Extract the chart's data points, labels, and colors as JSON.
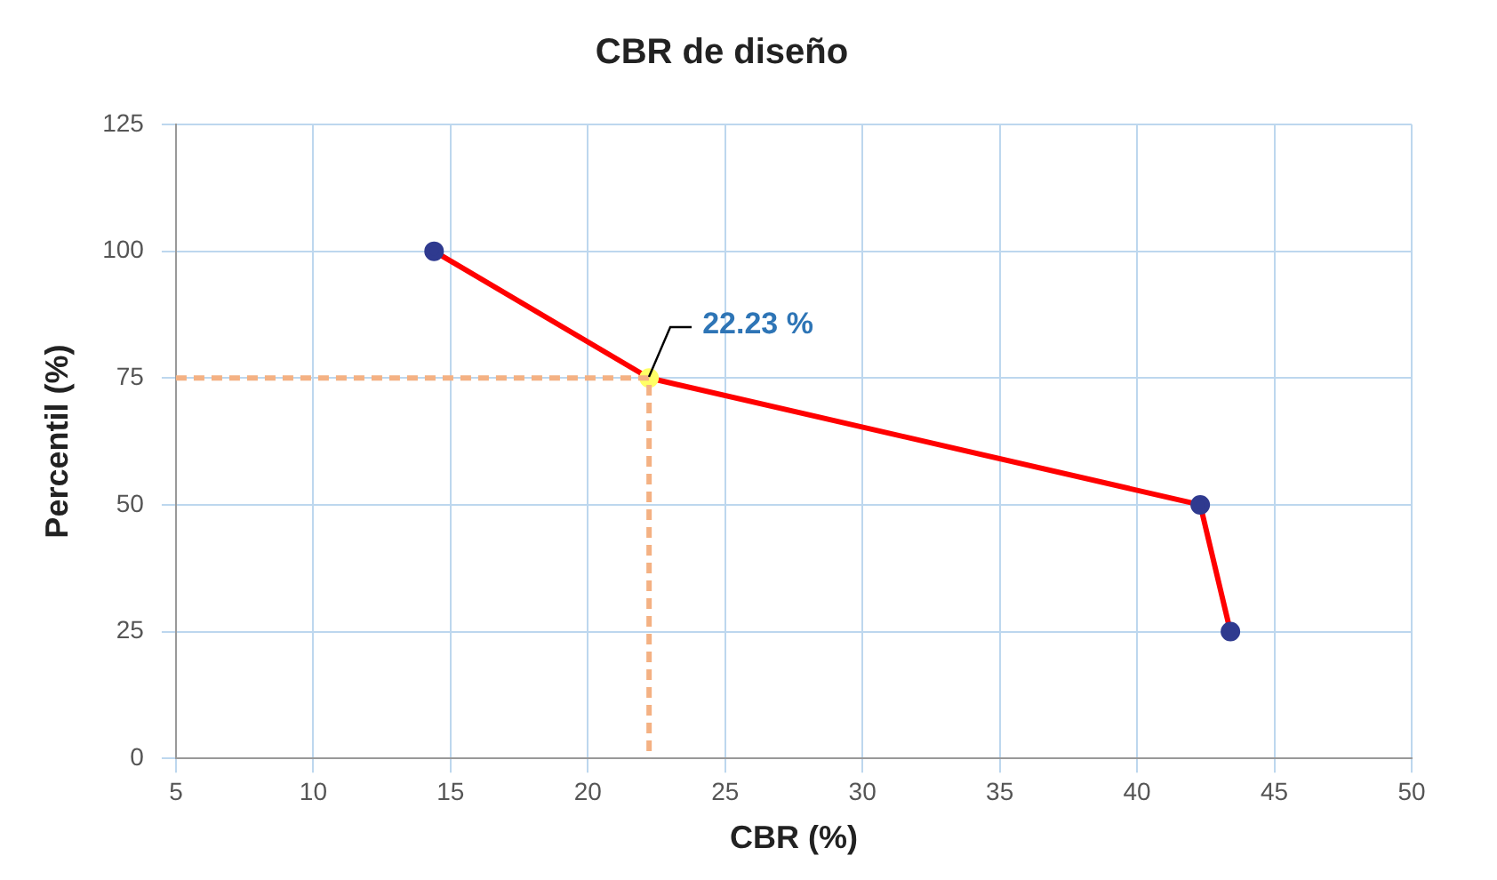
{
  "chart_data": {
    "type": "line",
    "title": "CBR de diseño",
    "xlabel": "CBR (%)",
    "ylabel": "Percentil (%)",
    "series": [
      {
        "color": "#ff0000",
        "x": [
          14.4,
          22.23,
          42.3,
          43.4
        ],
        "values": [
          100,
          75,
          50,
          25
        ],
        "colors": [
          "#2f3a8f",
          "#ffff66",
          "#2f3a8f",
          "#2f3a8f"
        ],
        "marker": "circle",
        "line_style": "solid"
      },
      {
        "color": "#f4b183",
        "x": [
          5,
          22.23,
          22.23
        ],
        "values": [
          75,
          75,
          0
        ],
        "marker": "none",
        "line_style": "dashed"
      }
    ],
    "annotations": [
      {
        "text": "22.23 %",
        "x": 22.23,
        "y": 75
      }
    ],
    "xlim": [
      5,
      50
    ],
    "xticks": [
      5,
      10,
      15,
      20,
      25,
      30,
      35,
      40,
      45,
      50
    ],
    "ylim": [
      0,
      125
    ],
    "yticks": [
      0,
      25,
      50,
      75,
      100,
      125
    ],
    "grid": true,
    "legend": false
  }
}
